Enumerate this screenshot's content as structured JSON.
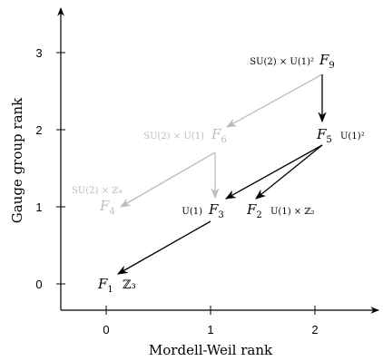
{
  "axes": {
    "x_title": "Mordell-Weil rank",
    "y_title": "Gauge group rank",
    "x_ticks": [
      "0",
      "1",
      "2"
    ],
    "y_ticks": [
      "0",
      "1",
      "2",
      "3"
    ]
  },
  "nodes": {
    "F9": {
      "name": "F",
      "sub": "9",
      "group": "SU(2) × U(1)²"
    },
    "F6": {
      "name": "F",
      "sub": "6",
      "group": "SU(2) × U(1)"
    },
    "F5": {
      "name": "F",
      "sub": "5",
      "group": "U(1)²"
    },
    "F4": {
      "name": "F",
      "sub": "4",
      "group": "SU(2) × ℤ₄"
    },
    "F3": {
      "name": "F",
      "sub": "3",
      "group": "U(1)"
    },
    "F2": {
      "name": "F",
      "sub": "2",
      "group": "U(1) × ℤ₂"
    },
    "F1": {
      "name": "F",
      "sub": "1",
      "group": "ℤ₃"
    }
  },
  "colors": {
    "dark": "#000000",
    "faded": "#bdbdbd"
  }
}
